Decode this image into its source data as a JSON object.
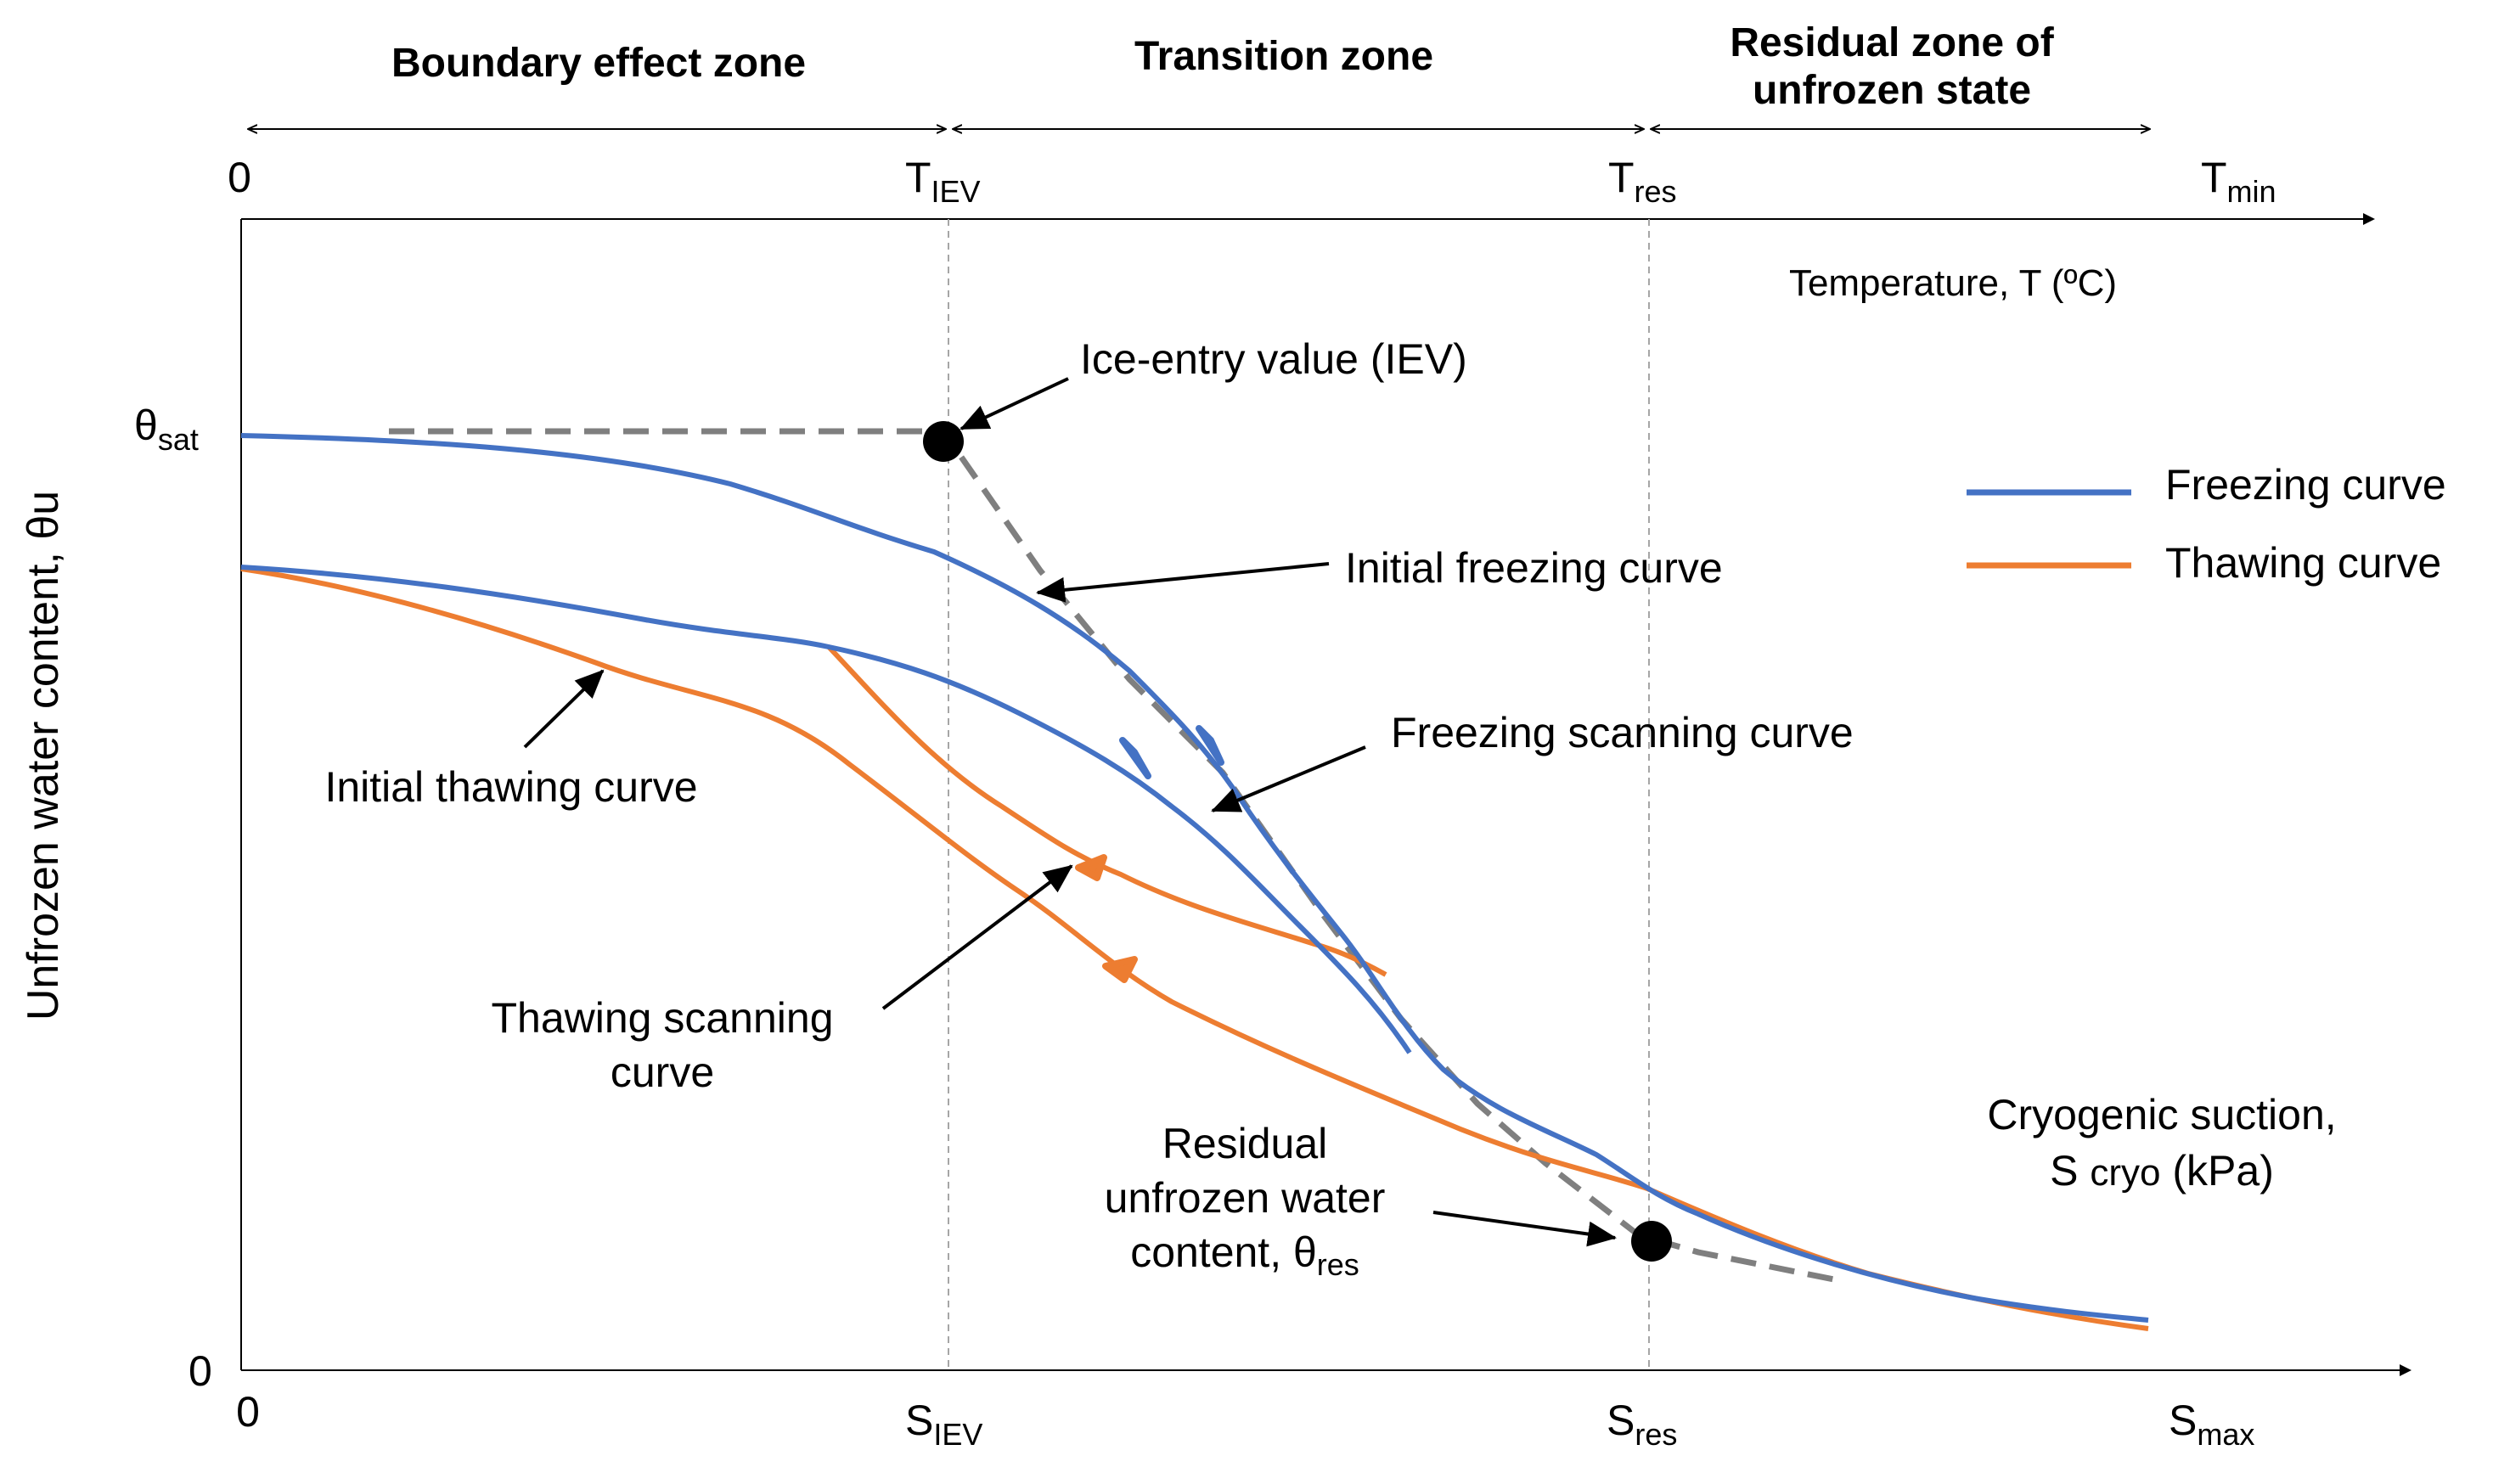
{
  "zones": {
    "boundary": "Boundary effect zone",
    "transition": "Transition zone",
    "residual_line1": "Residual zone of",
    "residual_line2": "unfrozen state"
  },
  "top_axis": {
    "origin": "0",
    "t_iev_main": "T",
    "t_iev_sub": "IEV",
    "t_res_main": "T",
    "t_res_sub": "res",
    "t_min_main": "T",
    "t_min_sub": "min",
    "title": "Temperature, T (ºC)"
  },
  "bottom_axis": {
    "origin": "0",
    "s_iev_main": "S",
    "s_iev_sub": "IEV",
    "s_res_main": "S",
    "s_res_sub": "res",
    "s_max_main": "S",
    "s_max_sub": "max",
    "title_line1": "Cryogenic suction,",
    "title_line2_a": "S ",
    "title_line2_sub": "cryo",
    "title_line2_b": " (kPa)"
  },
  "y_axis": {
    "title": "Unfrozen water content, θu",
    "theta_sat_main": "θ",
    "theta_sat_sub": "sat",
    "zero": "0"
  },
  "annotations": {
    "iev": "Ice-entry value (IEV)",
    "initial_freezing": "Initial freezing curve",
    "freezing_scanning": "Freezing scanning curve",
    "initial_thawing": "Initial thawing curve",
    "thawing_scanning_line1": "Thawing scanning",
    "thawing_scanning_line2": "curve",
    "residual_line1": "Residual",
    "residual_line2": "unfrozen water",
    "residual_line3_a": "content, θ",
    "residual_line3_sub": "res"
  },
  "legend": {
    "freezing": "Freezing curve",
    "thawing": "Thawing curve"
  },
  "colors": {
    "freezing": "#4472C4",
    "thawing": "#ED7D31",
    "dashed": "#7F7F7F",
    "guide": "#A6A6A6"
  }
}
